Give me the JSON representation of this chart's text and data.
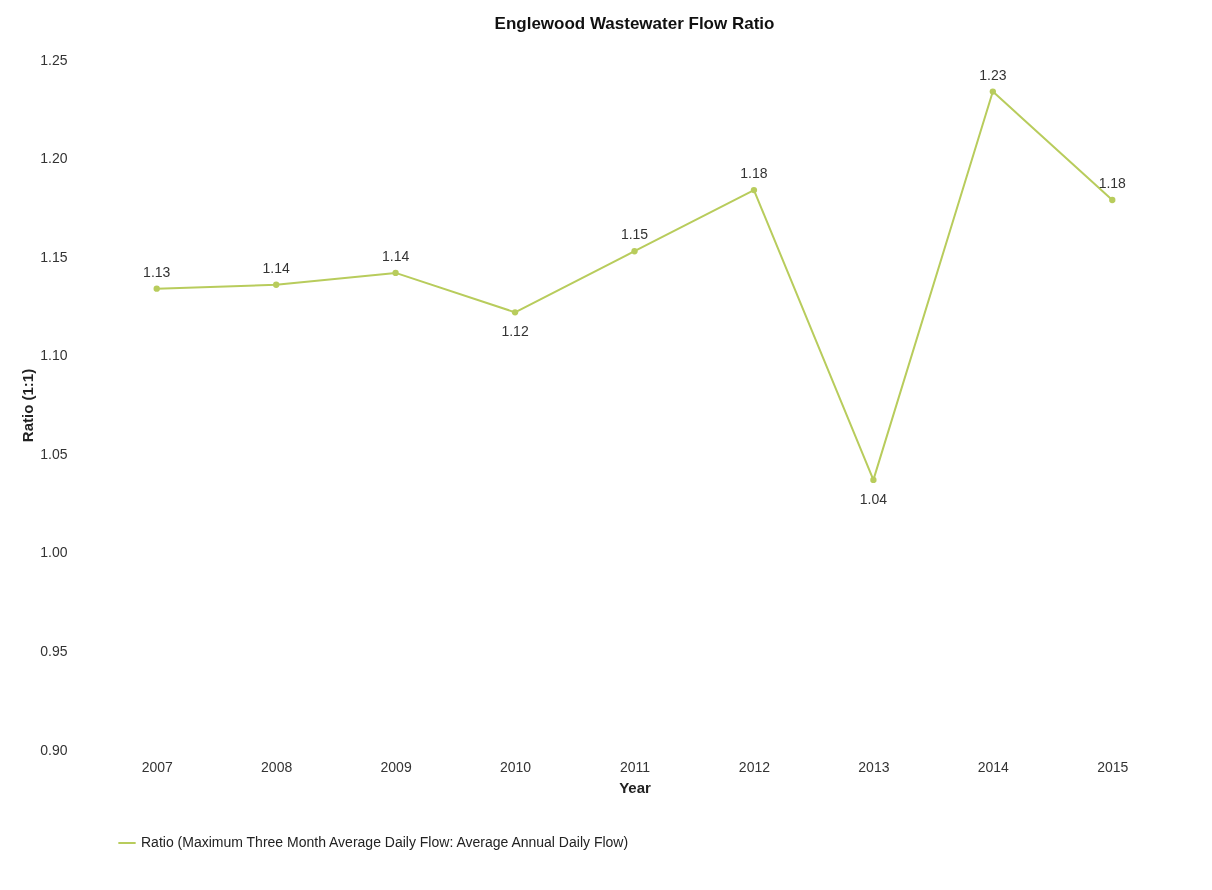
{
  "chart_data": {
    "type": "line",
    "title": "Englewood Wastewater Flow Ratio",
    "xlabel": "Year",
    "ylabel": "Ratio (1:1)",
    "categories": [
      "2007",
      "2008",
      "2009",
      "2010",
      "2011",
      "2012",
      "2013",
      "2014",
      "2015"
    ],
    "series": [
      {
        "name": "Ratio (Maximum Three Month Average Daily Flow: Average Annual Daily Flow)",
        "color": "#b8cc5c",
        "values": [
          1.134,
          1.136,
          1.142,
          1.122,
          1.153,
          1.184,
          1.037,
          1.234,
          1.179
        ],
        "value_labels": [
          "1.13",
          "1.14",
          "1.14",
          "1.12",
          "1.15",
          "1.18",
          "1.04",
          "1.23",
          "1.18"
        ]
      }
    ],
    "ylim": [
      0.9,
      1.25
    ],
    "yticks": [
      {
        "value": 0.9,
        "label": "0.90"
      },
      0.95,
      {
        "value": 1.0,
        "label": "1.00"
      },
      1.05,
      {
        "value": 1.1,
        "label": "1.10"
      },
      1.15,
      {
        "value": 1.2,
        "label": "1.20"
      },
      1.25
    ],
    "grid": false,
    "legend": "bottom",
    "marker": "circle",
    "line_style": "solid"
  }
}
